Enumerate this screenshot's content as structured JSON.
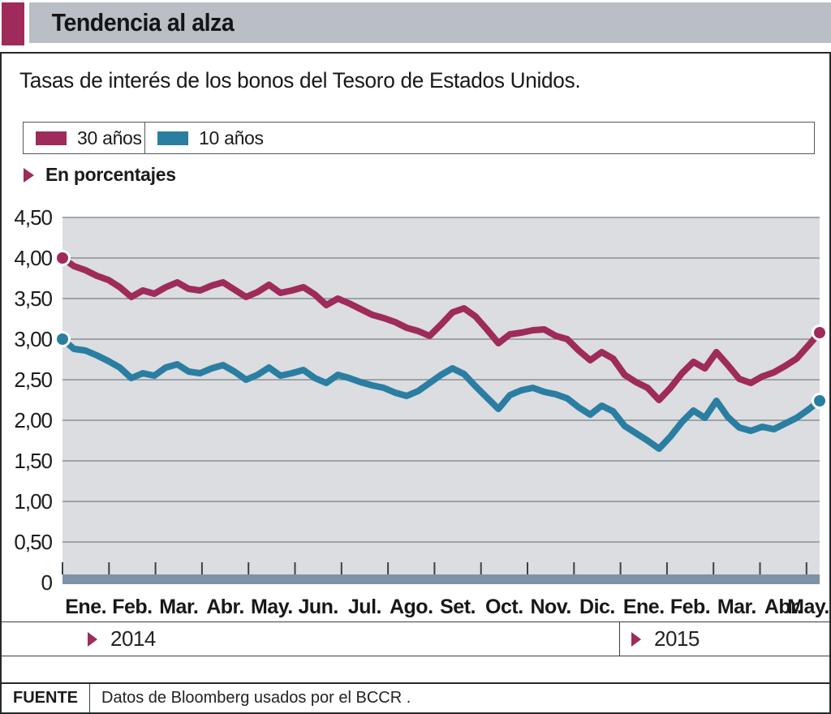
{
  "header": {
    "title": "Tendencia al alza",
    "accent_color": "#9E2B59",
    "bar_color": "#B9BFC5"
  },
  "subtitle": "Tasas de interés de los bonos del Tesoro de Estados Unidos.",
  "legend": {
    "items": [
      {
        "label": "30 años",
        "color": "#9E2B59"
      },
      {
        "label": "10 años",
        "color": "#2A7EA1"
      }
    ]
  },
  "unit_note": "En porcentajes",
  "years": {
    "first": "2014",
    "second": "2015"
  },
  "source": {
    "label": "FUENTE",
    "text": "Datos de Bloomberg usados por el BCCR ."
  },
  "chart_data": {
    "type": "line",
    "title": "Tasas de interés de los bonos del Tesoro de Estados Unidos.",
    "ylabel": "En porcentajes",
    "categories": [
      "Ene.",
      "Feb.",
      "Mar.",
      "Abr.",
      "May.",
      "Jun.",
      "Jul.",
      "Ago.",
      "Set.",
      "Oct.",
      "Nov.",
      "Dic.",
      "Ene.",
      "Feb.",
      "Mar.",
      "Abr.",
      "May."
    ],
    "year_split_month_index": 12,
    "points_per_month": 4,
    "ylim": [
      0,
      4.5
    ],
    "y_tick_step": 0.5,
    "y_tick_labels": [
      "4,50",
      "4,00",
      "3,50",
      "3,00",
      "2,50",
      "2,00",
      "1,50",
      "1,00",
      "0,50",
      "0"
    ],
    "grid": true,
    "legend_position": "top-left",
    "plot_bg": "#DBDDE0",
    "gridline_color": "#8A9096",
    "baseline_color": "#7D92A6",
    "tick_color": "#3C4147",
    "series": [
      {
        "name": "30 años",
        "color": "#9E2B59",
        "start_value": 4.0,
        "end_value": 3.08,
        "values": [
          4.0,
          3.9,
          3.85,
          3.78,
          3.73,
          3.64,
          3.52,
          3.6,
          3.56,
          3.64,
          3.7,
          3.62,
          3.6,
          3.66,
          3.7,
          3.61,
          3.52,
          3.58,
          3.67,
          3.57,
          3.6,
          3.64,
          3.55,
          3.42,
          3.5,
          3.44,
          3.37,
          3.3,
          3.26,
          3.21,
          3.14,
          3.1,
          3.04,
          3.18,
          3.33,
          3.38,
          3.28,
          3.12,
          2.95,
          3.06,
          3.08,
          3.11,
          3.12,
          3.04,
          3.0,
          2.86,
          2.74,
          2.84,
          2.76,
          2.56,
          2.47,
          2.4,
          2.25,
          2.4,
          2.58,
          2.72,
          2.64,
          2.84,
          2.68,
          2.51,
          2.46,
          2.54,
          2.59,
          2.67,
          2.76,
          2.92,
          3.08
        ]
      },
      {
        "name": "10 años",
        "color": "#2A7EA1",
        "start_value": 3.0,
        "end_value": 2.24,
        "values": [
          3.0,
          2.88,
          2.86,
          2.8,
          2.73,
          2.65,
          2.52,
          2.58,
          2.55,
          2.65,
          2.69,
          2.6,
          2.58,
          2.64,
          2.68,
          2.6,
          2.5,
          2.56,
          2.65,
          2.55,
          2.58,
          2.62,
          2.52,
          2.46,
          2.56,
          2.52,
          2.47,
          2.43,
          2.4,
          2.34,
          2.3,
          2.36,
          2.46,
          2.56,
          2.64,
          2.57,
          2.42,
          2.28,
          2.14,
          2.31,
          2.37,
          2.4,
          2.35,
          2.32,
          2.27,
          2.16,
          2.07,
          2.18,
          2.11,
          1.93,
          1.84,
          1.75,
          1.65,
          1.8,
          1.98,
          2.12,
          2.03,
          2.24,
          2.04,
          1.91,
          1.87,
          1.92,
          1.89,
          1.96,
          2.03,
          2.13,
          2.24
        ]
      }
    ]
  }
}
